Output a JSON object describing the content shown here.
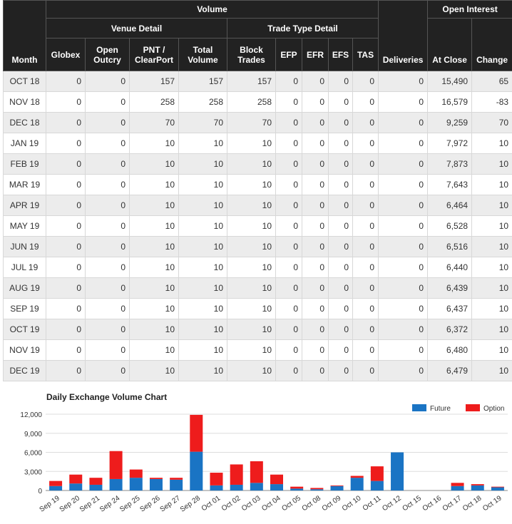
{
  "table": {
    "headers": {
      "month": "Month",
      "volume": "Volume",
      "open_interest": "Open Interest",
      "venue_detail": "Venue Detail",
      "trade_type_detail": "Trade Type Detail",
      "globex": "Globex",
      "open_outcry": "Open Outcry",
      "pnt_clearport": "PNT / ClearPort",
      "total_volume": "Total Volume",
      "block_trades": "Block Trades",
      "efp": "EFP",
      "efr": "EFR",
      "efs": "EFS",
      "tas": "TAS",
      "deliveries": "Deliveries",
      "at_close": "At Close",
      "change": "Change"
    },
    "rows": [
      {
        "month": "OCT 18",
        "globex": "0",
        "open_outcry": "0",
        "pnt": "157",
        "total": "157",
        "block": "157",
        "efp": "0",
        "efr": "0",
        "efs": "0",
        "tas": "0",
        "deliveries": "0",
        "at_close": "15,490",
        "change": "65"
      },
      {
        "month": "NOV 18",
        "globex": "0",
        "open_outcry": "0",
        "pnt": "258",
        "total": "258",
        "block": "258",
        "efp": "0",
        "efr": "0",
        "efs": "0",
        "tas": "0",
        "deliveries": "0",
        "at_close": "16,579",
        "change": "-83"
      },
      {
        "month": "DEC 18",
        "globex": "0",
        "open_outcry": "0",
        "pnt": "70",
        "total": "70",
        "block": "70",
        "efp": "0",
        "efr": "0",
        "efs": "0",
        "tas": "0",
        "deliveries": "0",
        "at_close": "9,259",
        "change": "70"
      },
      {
        "month": "JAN 19",
        "globex": "0",
        "open_outcry": "0",
        "pnt": "10",
        "total": "10",
        "block": "10",
        "efp": "0",
        "efr": "0",
        "efs": "0",
        "tas": "0",
        "deliveries": "0",
        "at_close": "7,972",
        "change": "10"
      },
      {
        "month": "FEB 19",
        "globex": "0",
        "open_outcry": "0",
        "pnt": "10",
        "total": "10",
        "block": "10",
        "efp": "0",
        "efr": "0",
        "efs": "0",
        "tas": "0",
        "deliveries": "0",
        "at_close": "7,873",
        "change": "10"
      },
      {
        "month": "MAR 19",
        "globex": "0",
        "open_outcry": "0",
        "pnt": "10",
        "total": "10",
        "block": "10",
        "efp": "0",
        "efr": "0",
        "efs": "0",
        "tas": "0",
        "deliveries": "0",
        "at_close": "7,643",
        "change": "10"
      },
      {
        "month": "APR 19",
        "globex": "0",
        "open_outcry": "0",
        "pnt": "10",
        "total": "10",
        "block": "10",
        "efp": "0",
        "efr": "0",
        "efs": "0",
        "tas": "0",
        "deliveries": "0",
        "at_close": "6,464",
        "change": "10"
      },
      {
        "month": "MAY 19",
        "globex": "0",
        "open_outcry": "0",
        "pnt": "10",
        "total": "10",
        "block": "10",
        "efp": "0",
        "efr": "0",
        "efs": "0",
        "tas": "0",
        "deliveries": "0",
        "at_close": "6,528",
        "change": "10"
      },
      {
        "month": "JUN 19",
        "globex": "0",
        "open_outcry": "0",
        "pnt": "10",
        "total": "10",
        "block": "10",
        "efp": "0",
        "efr": "0",
        "efs": "0",
        "tas": "0",
        "deliveries": "0",
        "at_close": "6,516",
        "change": "10"
      },
      {
        "month": "JUL 19",
        "globex": "0",
        "open_outcry": "0",
        "pnt": "10",
        "total": "10",
        "block": "10",
        "efp": "0",
        "efr": "0",
        "efs": "0",
        "tas": "0",
        "deliveries": "0",
        "at_close": "6,440",
        "change": "10"
      },
      {
        "month": "AUG 19",
        "globex": "0",
        "open_outcry": "0",
        "pnt": "10",
        "total": "10",
        "block": "10",
        "efp": "0",
        "efr": "0",
        "efs": "0",
        "tas": "0",
        "deliveries": "0",
        "at_close": "6,439",
        "change": "10"
      },
      {
        "month": "SEP 19",
        "globex": "0",
        "open_outcry": "0",
        "pnt": "10",
        "total": "10",
        "block": "10",
        "efp": "0",
        "efr": "0",
        "efs": "0",
        "tas": "0",
        "deliveries": "0",
        "at_close": "6,437",
        "change": "10"
      },
      {
        "month": "OCT 19",
        "globex": "0",
        "open_outcry": "0",
        "pnt": "10",
        "total": "10",
        "block": "10",
        "efp": "0",
        "efr": "0",
        "efs": "0",
        "tas": "0",
        "deliveries": "0",
        "at_close": "6,372",
        "change": "10"
      },
      {
        "month": "NOV 19",
        "globex": "0",
        "open_outcry": "0",
        "pnt": "10",
        "total": "10",
        "block": "10",
        "efp": "0",
        "efr": "0",
        "efs": "0",
        "tas": "0",
        "deliveries": "0",
        "at_close": "6,480",
        "change": "10"
      },
      {
        "month": "DEC 19",
        "globex": "0",
        "open_outcry": "0",
        "pnt": "10",
        "total": "10",
        "block": "10",
        "efp": "0",
        "efr": "0",
        "efs": "0",
        "tas": "0",
        "deliveries": "0",
        "at_close": "6,479",
        "change": "10"
      }
    ]
  },
  "colors": {
    "future": "#1a74c4",
    "option": "#ee1c1c",
    "header_bg": "#222222",
    "row_alt": "#ececec"
  },
  "chart_data": {
    "type": "bar",
    "stacked": true,
    "title": "Daily Exchange Volume Chart",
    "xlabel": "",
    "ylabel": "",
    "ylim": [
      0,
      12000
    ],
    "y_ticks": [
      "0",
      "3,000",
      "6,000",
      "9,000",
      "12,000"
    ],
    "y_tick_values": [
      0,
      3000,
      6000,
      9000,
      12000
    ],
    "grid": true,
    "legend_position": "top-right",
    "categories": [
      "Sep 19",
      "Sep 20",
      "Sep 21",
      "Sep 24",
      "Sep 25",
      "Sep 26",
      "Sep 27",
      "Sep 28",
      "Oct 01",
      "Oct 02",
      "Oct 03",
      "Oct 04",
      "Oct 05",
      "Oct 08",
      "Oct 09",
      "Oct 10",
      "Oct 11",
      "Oct 12",
      "Oct 15",
      "Oct 16",
      "Oct 17",
      "Oct 18",
      "Oct 19"
    ],
    "series": [
      {
        "name": "Future",
        "values": [
          700,
          1100,
          900,
          1800,
          2000,
          1800,
          1700,
          6100,
          800,
          900,
          1200,
          1000,
          300,
          200,
          700,
          2000,
          1500,
          6000,
          0,
          0,
          700,
          800,
          500
        ]
      },
      {
        "name": "Option",
        "values": [
          800,
          1400,
          1100,
          4400,
          1300,
          200,
          300,
          5800,
          2000,
          3200,
          3400,
          1500,
          300,
          200,
          100,
          300,
          2300,
          0,
          0,
          0,
          500,
          200,
          100
        ]
      }
    ]
  }
}
